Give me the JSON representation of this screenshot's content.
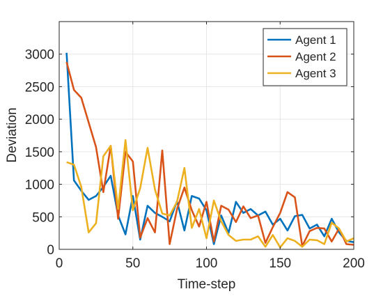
{
  "chart_data": {
    "type": "line",
    "title": "",
    "xlabel": "Time-step",
    "ylabel": "Deviation",
    "xlim": [
      0,
      200
    ],
    "ylim": [
      0,
      3500
    ],
    "xticks": [
      0,
      50,
      100,
      150,
      200
    ],
    "yticks": [
      0,
      500,
      1000,
      1500,
      2000,
      2500,
      3000
    ],
    "grid": true,
    "legend_position": "top-right",
    "x": [
      5,
      10,
      15,
      20,
      25,
      30,
      35,
      40,
      45,
      50,
      55,
      60,
      65,
      70,
      75,
      80,
      85,
      90,
      95,
      100,
      105,
      110,
      115,
      120,
      125,
      130,
      135,
      140,
      145,
      150,
      155,
      160,
      165,
      170,
      175,
      180,
      185,
      190,
      195,
      200
    ],
    "series": [
      {
        "name": "Agent 1",
        "color": "#0072BD",
        "values": [
          3020,
          1060,
          900,
          760,
          820,
          960,
          1130,
          520,
          230,
          820,
          150,
          670,
          560,
          500,
          430,
          740,
          290,
          820,
          780,
          600,
          80,
          520,
          250,
          730,
          560,
          620,
          520,
          580,
          380,
          470,
          290,
          510,
          530,
          320,
          380,
          200,
          470,
          260,
          130,
          110
        ]
      },
      {
        "name": "Agent 2",
        "color": "#D95319",
        "values": [
          2880,
          2450,
          2330,
          1950,
          1570,
          880,
          1590,
          470,
          1500,
          1350,
          180,
          480,
          260,
          1520,
          80,
          620,
          950,
          600,
          350,
          730,
          120,
          670,
          610,
          420,
          660,
          480,
          520,
          100,
          340,
          560,
          880,
          800,
          50,
          280,
          330,
          320,
          120,
          320,
          80,
          70
        ]
      },
      {
        "name": "Agent 3",
        "color": "#EDB120",
        "values": [
          1340,
          1300,
          960,
          260,
          400,
          1430,
          1590,
          620,
          1680,
          600,
          940,
          1560,
          920,
          550,
          520,
          730,
          1250,
          330,
          620,
          170,
          750,
          430,
          220,
          130,
          150,
          150,
          200,
          40,
          220,
          30,
          170,
          130,
          40,
          150,
          140,
          80,
          410,
          320,
          120,
          170
        ]
      }
    ]
  }
}
